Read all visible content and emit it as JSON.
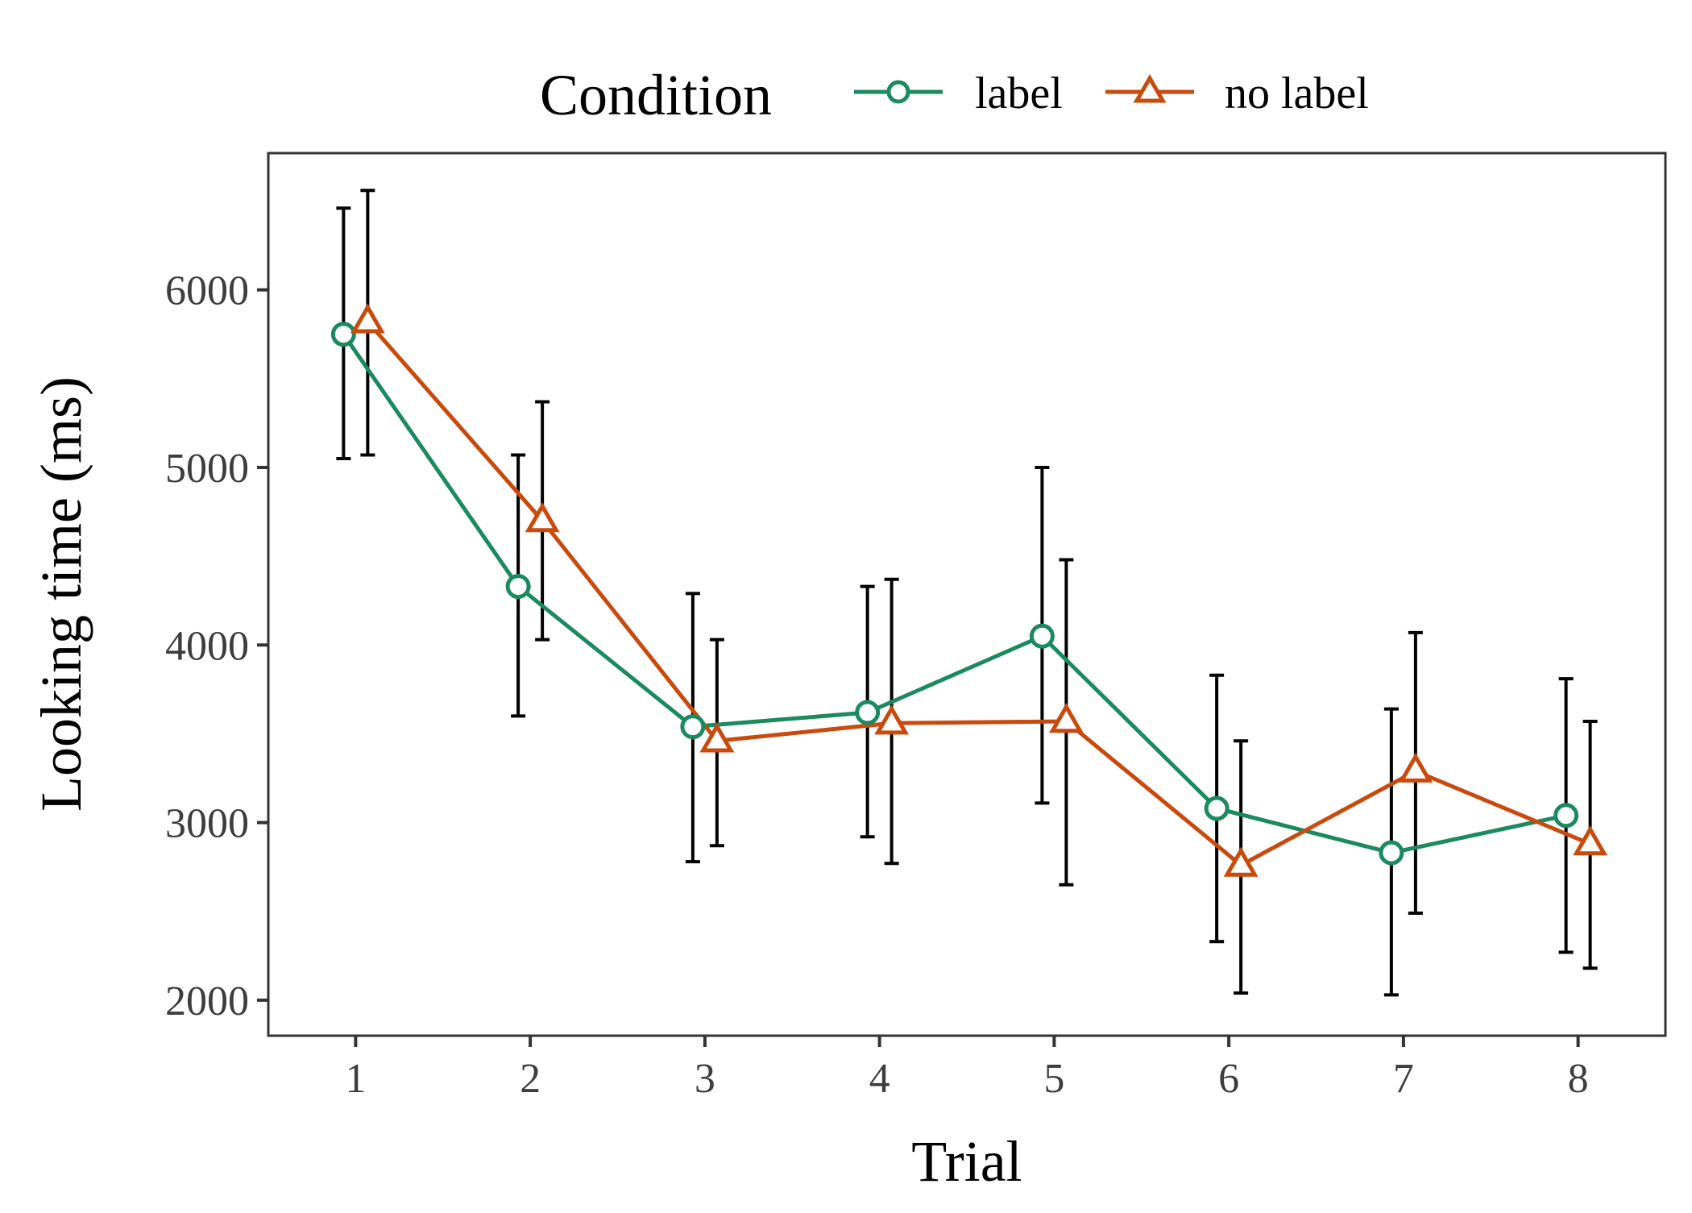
{
  "chart_data": {
    "type": "line",
    "xlabel": "Trial",
    "ylabel": "Looking time (ms)",
    "x": [
      1,
      2,
      3,
      4,
      5,
      6,
      7,
      8
    ],
    "xticks": [
      "1",
      "2",
      "3",
      "4",
      "5",
      "6",
      "7",
      "8"
    ],
    "xlim": [
      0.5,
      8.5
    ],
    "yticks": [
      "2000",
      "3000",
      "4000",
      "5000",
      "6000"
    ],
    "ylim": [
      1800,
      6770
    ],
    "grid": false,
    "legend": {
      "title": "Condition",
      "position": "top"
    },
    "series": [
      {
        "name": "label",
        "marker": "circle",
        "color": "#1b8a5f",
        "values": [
          5750,
          4330,
          3540,
          3620,
          4050,
          3080,
          2830,
          3040
        ],
        "error_lower": [
          5050,
          3600,
          2780,
          2920,
          3110,
          2330,
          2030,
          2270
        ],
        "error_upper": [
          6460,
          5070,
          4290,
          4330,
          5000,
          3830,
          3640,
          3810
        ]
      },
      {
        "name": "no label",
        "marker": "triangle",
        "color": "#c84a0c",
        "values": [
          5820,
          4700,
          3460,
          3560,
          3570,
          2760,
          3290,
          2880
        ],
        "error_lower": [
          5070,
          4030,
          2870,
          2770,
          2650,
          2040,
          2490,
          2180
        ],
        "error_upper": [
          6560,
          5370,
          4030,
          4370,
          4480,
          3460,
          4070,
          3570
        ]
      }
    ]
  }
}
